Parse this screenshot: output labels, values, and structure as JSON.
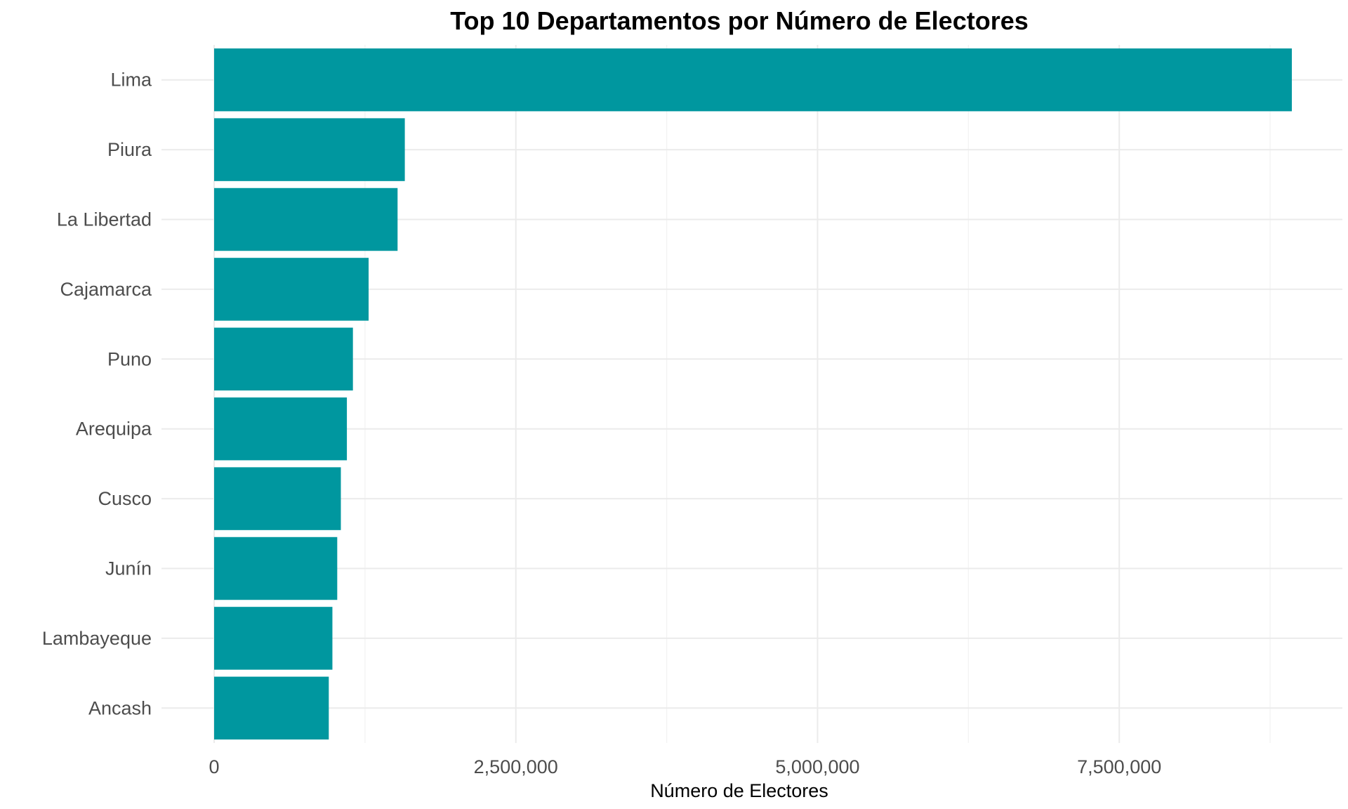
{
  "chart_data": {
    "type": "bar",
    "orientation": "horizontal",
    "title": "Top 10 Departamentos por Número de Electores",
    "xlabel": "Número de Electores",
    "ylabel": "",
    "categories": [
      "Lima",
      "Piura",
      "La Libertad",
      "Cajamarca",
      "Puno",
      "Arequipa",
      "Cusco",
      "Junín",
      "Lambayeque",
      "Ancash"
    ],
    "values": [
      8930000,
      1580000,
      1520000,
      1280000,
      1150000,
      1100000,
      1050000,
      1020000,
      980000,
      950000
    ],
    "xlim": [
      0,
      9000000
    ],
    "xticks": [
      0,
      2500000,
      5000000,
      7500000
    ],
    "xtick_labels": [
      "0",
      "2,500,000",
      "5,000,000",
      "7,500,000"
    ],
    "grid": true,
    "legend": "none",
    "bar_color": "#00979f"
  }
}
